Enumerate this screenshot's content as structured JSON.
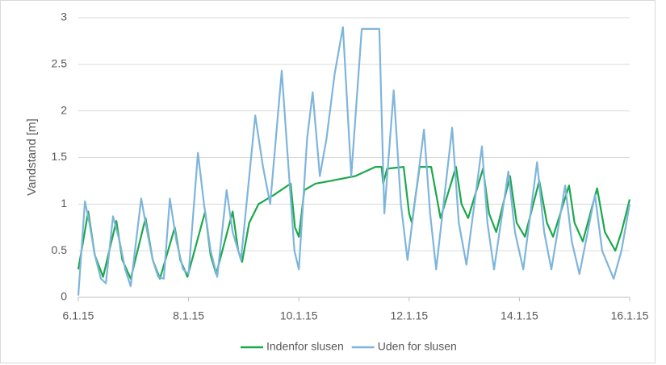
{
  "chart_data": {
    "type": "line",
    "y_label": "Vandstand [m]",
    "xlim": [
      6,
      16
    ],
    "xticks": [
      {
        "value": 6,
        "label": "6.1.15"
      },
      {
        "value": 8,
        "label": "8.1.15"
      },
      {
        "value": 10,
        "label": "10.1.15"
      },
      {
        "value": 12,
        "label": "12.1.15"
      },
      {
        "value": 14,
        "label": "14.1.15"
      },
      {
        "value": 16,
        "label": "16.1.15"
      }
    ],
    "ylim": [
      0,
      3
    ],
    "yticks": [
      0,
      0.5,
      1,
      {
        "value": 1.5,
        "label": "1.5"
      },
      2,
      2.5,
      3
    ],
    "grid": true,
    "legend": "bottom",
    "series": [
      {
        "name": "Indenfor slusen",
        "color": "#1aa84a",
        "x": [
          6.0,
          6.18,
          6.3,
          6.45,
          6.69,
          6.8,
          6.95,
          7.22,
          7.35,
          7.48,
          7.75,
          7.85,
          7.98,
          8.3,
          8.4,
          8.5,
          8.8,
          8.9,
          8.97,
          9.1,
          9.27,
          9.55,
          9.85,
          9.93,
          10.0,
          10.1,
          10.3,
          10.58,
          11.02,
          11.39,
          11.5,
          11.53,
          11.6,
          11.9,
          12.0,
          12.05,
          12.19,
          12.4,
          12.57,
          12.85,
          12.95,
          13.07,
          13.34,
          13.45,
          13.58,
          13.83,
          13.95,
          14.1,
          14.36,
          14.5,
          14.61,
          14.9,
          15.0,
          15.15,
          15.41,
          15.55,
          15.74,
          15.85,
          16.0
        ],
        "values": [
          0.3,
          0.92,
          0.45,
          0.22,
          0.82,
          0.4,
          0.2,
          0.85,
          0.4,
          0.2,
          0.75,
          0.4,
          0.22,
          0.92,
          0.45,
          0.25,
          0.92,
          0.5,
          0.38,
          0.8,
          1.0,
          1.1,
          1.22,
          0.75,
          0.65,
          1.15,
          1.22,
          1.25,
          1.3,
          1.4,
          1.4,
          1.22,
          1.38,
          1.4,
          0.9,
          0.8,
          1.4,
          1.4,
          0.85,
          1.4,
          1.0,
          0.85,
          1.38,
          0.9,
          0.7,
          1.3,
          0.8,
          0.65,
          1.25,
          0.8,
          0.65,
          1.2,
          0.8,
          0.6,
          1.17,
          0.7,
          0.5,
          0.7,
          1.05
        ]
      },
      {
        "name": "Uden for slusen",
        "color": "#7fb5dc",
        "x": [
          6.0,
          6.12,
          6.2,
          6.3,
          6.41,
          6.5,
          6.63,
          6.75,
          6.85,
          6.95,
          7.14,
          7.25,
          7.35,
          7.45,
          7.55,
          7.66,
          7.78,
          7.9,
          8.0,
          8.17,
          8.28,
          8.4,
          8.52,
          8.69,
          8.8,
          8.95,
          9.21,
          9.35,
          9.48,
          9.69,
          9.8,
          9.92,
          10.0,
          10.15,
          10.25,
          10.38,
          10.5,
          10.65,
          10.8,
          10.95,
          11.14,
          11.46,
          11.55,
          11.72,
          11.85,
          11.97,
          12.27,
          12.38,
          12.49,
          12.78,
          12.9,
          13.04,
          13.32,
          13.42,
          13.54,
          13.8,
          13.92,
          14.07,
          14.32,
          14.45,
          14.58,
          14.83,
          14.95,
          15.09,
          15.37,
          15.5,
          15.71,
          15.85,
          16.0
        ],
        "values": [
          0.02,
          1.03,
          0.8,
          0.45,
          0.2,
          0.15,
          0.87,
          0.6,
          0.3,
          0.12,
          1.06,
          0.7,
          0.4,
          0.22,
          0.2,
          1.06,
          0.6,
          0.3,
          0.25,
          1.55,
          1.0,
          0.5,
          0.22,
          1.15,
          0.7,
          0.4,
          1.95,
          1.4,
          1.0,
          2.43,
          1.5,
          0.5,
          0.3,
          1.7,
          2.2,
          1.3,
          1.7,
          2.4,
          2.9,
          1.3,
          2.88,
          2.88,
          0.9,
          2.22,
          1.0,
          0.4,
          1.8,
          0.9,
          0.3,
          1.82,
          0.8,
          0.35,
          1.62,
          0.8,
          0.3,
          1.35,
          0.7,
          0.3,
          1.45,
          0.7,
          0.3,
          1.2,
          0.6,
          0.25,
          1.1,
          0.5,
          0.2,
          0.5,
          1.0
        ]
      }
    ]
  }
}
